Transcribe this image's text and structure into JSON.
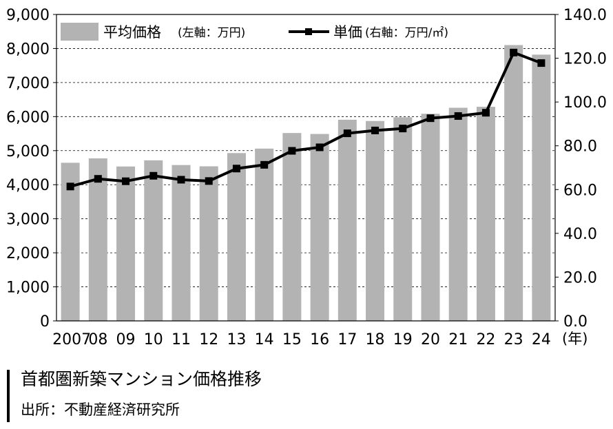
{
  "chart_data": {
    "type": "bar+line",
    "categories": [
      "2007",
      "08",
      "09",
      "10",
      "11",
      "12",
      "13",
      "14",
      "15",
      "16",
      "17",
      "18",
      "19",
      "20",
      "21",
      "22",
      "23",
      "24"
    ],
    "x_unit_label": "(年)",
    "series": [
      {
        "name": "平均価格",
        "axis_note": "(左軸：万円)",
        "type": "bar",
        "axis": "left",
        "color": "#b3b3b3",
        "values": [
          4644,
          4774,
          4535,
          4716,
          4578,
          4540,
          4929,
          5060,
          5518,
          5490,
          5908,
          5871,
          5980,
          6083,
          6260,
          6288,
          8101,
          7820
        ]
      },
      {
        "name": "単価",
        "axis_note": "(右軸：万円/㎡)",
        "type": "line",
        "axis": "right",
        "color": "#000000",
        "values": [
          61.4,
          64.9,
          63.8,
          66.3,
          64.5,
          63.9,
          69.6,
          71.3,
          77.7,
          79.3,
          85.7,
          87.0,
          87.9,
          92.6,
          93.6,
          95.1,
          122.6,
          117.8
        ]
      }
    ],
    "left_axis": {
      "ylim": [
        0,
        9000
      ],
      "ticks": [
        "0",
        "1,000",
        "2,000",
        "3,000",
        "4,000",
        "5,000",
        "6,000",
        "7,000",
        "8,000",
        "9,000"
      ]
    },
    "right_axis": {
      "ylim": [
        0,
        140
      ],
      "ticks": [
        "0.0",
        "20.0",
        "40.0",
        "60.0",
        "80.0",
        "100.0",
        "120.0",
        "140.0"
      ]
    },
    "grid": "horizontal-dashed",
    "legend_placement": "top-left"
  },
  "caption": {
    "title": "首都圏新築マンション価格推移",
    "source": "出所：不動産経済研究所"
  }
}
